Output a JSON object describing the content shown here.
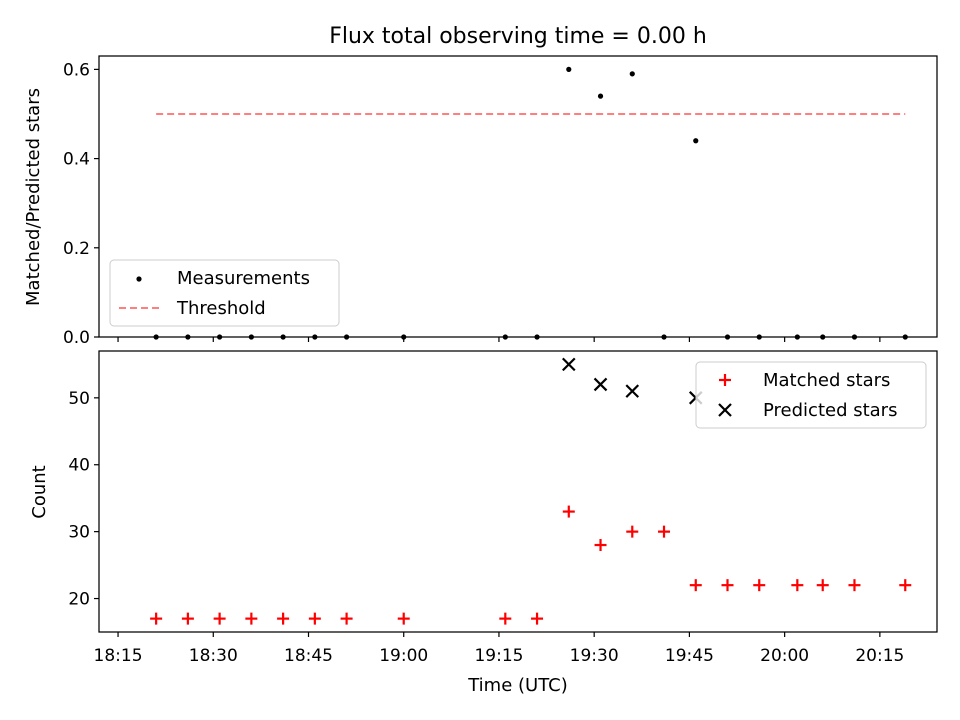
{
  "chart_data": [
    {
      "type": "scatter",
      "title": "Flux total observing time = 0.00 h",
      "xlabel": "",
      "ylabel": "Matched/Predicted stars",
      "xlim": [
        "18:12",
        "20:24"
      ],
      "ylim": [
        0,
        0.63
      ],
      "yticks": [
        0.0,
        0.2,
        0.4,
        0.6
      ],
      "ytick_labels": [
        "0.0",
        "0.2",
        "0.4",
        "0.6"
      ],
      "legend_position": "lower-left",
      "grid": false,
      "series": [
        {
          "name": "Measurements",
          "marker": "dot",
          "color": "#000000",
          "points": [
            {
              "x": "18:21",
              "y": 0.0
            },
            {
              "x": "18:26",
              "y": 0.0
            },
            {
              "x": "18:31",
              "y": 0.0
            },
            {
              "x": "18:36",
              "y": 0.0
            },
            {
              "x": "18:41",
              "y": 0.0
            },
            {
              "x": "18:46",
              "y": 0.0
            },
            {
              "x": "18:51",
              "y": 0.0
            },
            {
              "x": "19:00",
              "y": 0.0
            },
            {
              "x": "19:16",
              "y": 0.0
            },
            {
              "x": "19:21",
              "y": 0.0
            },
            {
              "x": "19:26",
              "y": 0.6
            },
            {
              "x": "19:31",
              "y": 0.54
            },
            {
              "x": "19:36",
              "y": 0.59
            },
            {
              "x": "19:41",
              "y": 0.0
            },
            {
              "x": "19:46",
              "y": 0.44
            },
            {
              "x": "19:51",
              "y": 0.0
            },
            {
              "x": "19:56",
              "y": 0.0
            },
            {
              "x": "20:02",
              "y": 0.0
            },
            {
              "x": "20:06",
              "y": 0.0
            },
            {
              "x": "20:11",
              "y": 0.0
            },
            {
              "x": "20:19",
              "y": 0.0
            }
          ]
        },
        {
          "name": "Threshold",
          "type": "line",
          "style": "dashed",
          "color": "#ff7f7f",
          "points": [
            {
              "x": "18:21",
              "y": 0.5
            },
            {
              "x": "20:19",
              "y": 0.5
            }
          ]
        }
      ]
    },
    {
      "type": "scatter",
      "title": "",
      "xlabel": "Time (UTC)",
      "ylabel": "Count",
      "xlim": [
        "18:12",
        "20:24"
      ],
      "ylim": [
        15,
        57
      ],
      "xticks": [
        "18:15",
        "18:30",
        "18:45",
        "19:00",
        "19:15",
        "19:30",
        "19:45",
        "20:00",
        "20:15"
      ],
      "yticks": [
        20,
        30,
        40,
        50
      ],
      "ytick_labels": [
        "20",
        "30",
        "40",
        "50"
      ],
      "legend_position": "upper-right",
      "grid": false,
      "series": [
        {
          "name": "Matched stars",
          "marker": "plus",
          "color": "#ff0000",
          "points": [
            {
              "x": "18:21",
              "y": 17
            },
            {
              "x": "18:26",
              "y": 17
            },
            {
              "x": "18:31",
              "y": 17
            },
            {
              "x": "18:36",
              "y": 17
            },
            {
              "x": "18:41",
              "y": 17
            },
            {
              "x": "18:46",
              "y": 17
            },
            {
              "x": "18:51",
              "y": 17
            },
            {
              "x": "19:00",
              "y": 17
            },
            {
              "x": "19:16",
              "y": 17
            },
            {
              "x": "19:21",
              "y": 17
            },
            {
              "x": "19:26",
              "y": 33
            },
            {
              "x": "19:31",
              "y": 28
            },
            {
              "x": "19:36",
              "y": 30
            },
            {
              "x": "19:41",
              "y": 30
            },
            {
              "x": "19:46",
              "y": 22
            },
            {
              "x": "19:51",
              "y": 22
            },
            {
              "x": "19:56",
              "y": 22
            },
            {
              "x": "20:02",
              "y": 22
            },
            {
              "x": "20:06",
              "y": 22
            },
            {
              "x": "20:11",
              "y": 22
            },
            {
              "x": "20:19",
              "y": 22
            }
          ]
        },
        {
          "name": "Predicted stars",
          "marker": "x",
          "color": "#000000",
          "points": [
            {
              "x": "19:26",
              "y": 55
            },
            {
              "x": "19:31",
              "y": 52
            },
            {
              "x": "19:36",
              "y": 51
            },
            {
              "x": "19:46",
              "y": 50
            }
          ]
        }
      ]
    }
  ]
}
